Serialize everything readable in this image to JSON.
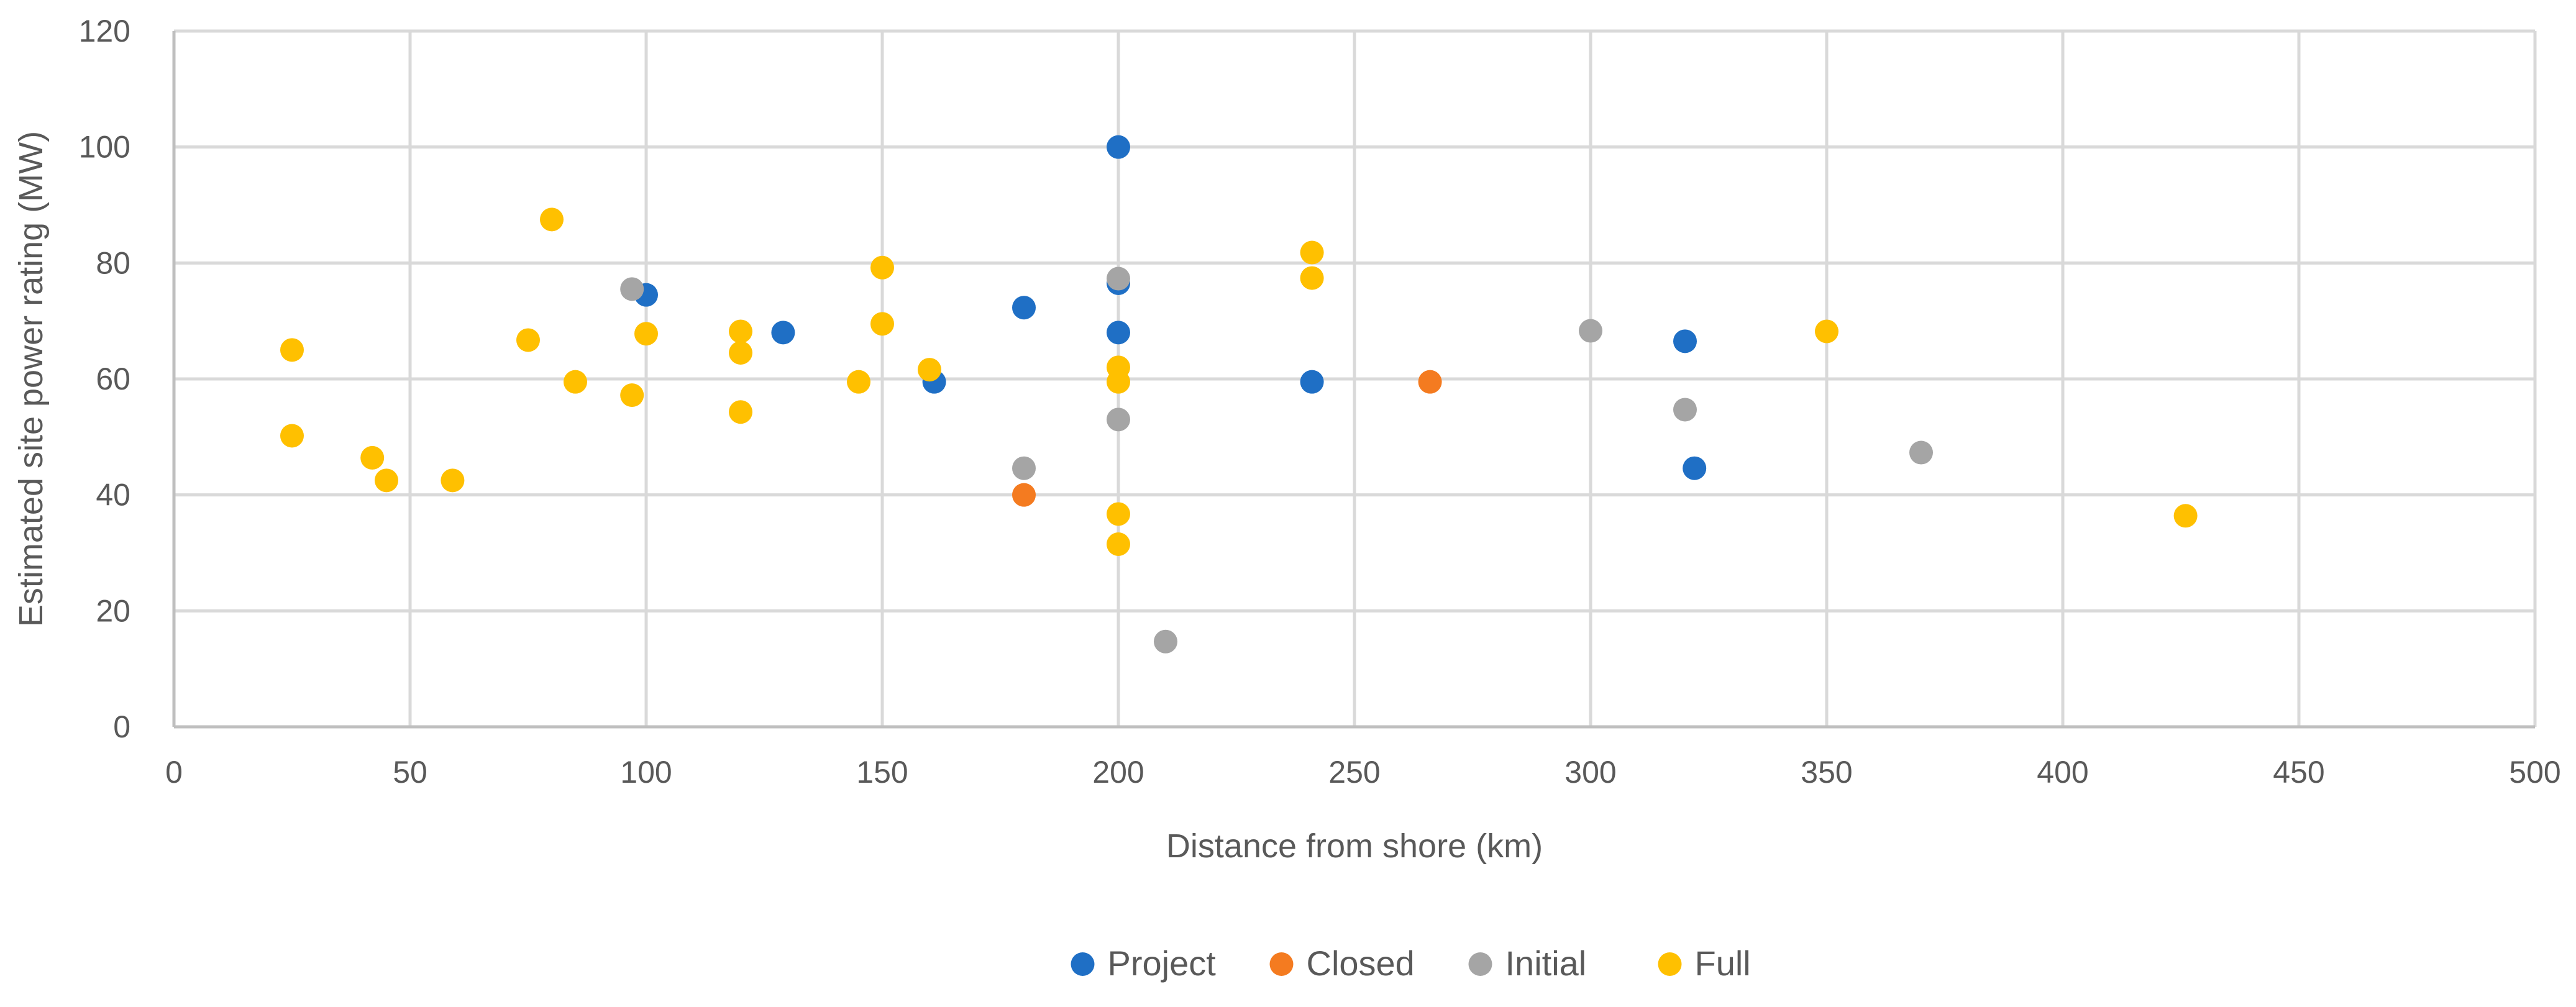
{
  "chart_data": {
    "type": "scatter",
    "title": "",
    "xlabel": "Distance from shore (km)",
    "ylabel": "Estimated site power rating (MW)",
    "xlim": [
      0,
      500
    ],
    "ylim": [
      0,
      120
    ],
    "xticks": [
      0,
      50,
      100,
      150,
      200,
      250,
      300,
      350,
      400,
      450,
      500
    ],
    "yticks": [
      0,
      20,
      40,
      60,
      80,
      100,
      120
    ],
    "grid": true,
    "legend_position": "bottom",
    "series": [
      {
        "name": "Project",
        "color": "#1f6fc5",
        "points": [
          [
            100,
            74.5
          ],
          [
            129,
            68
          ],
          [
            161,
            59.5
          ],
          [
            180,
            72.3
          ],
          [
            200,
            100
          ],
          [
            200,
            76.5
          ],
          [
            200,
            68
          ],
          [
            241,
            59.5
          ],
          [
            320,
            66.5
          ],
          [
            322,
            44.6
          ]
        ]
      },
      {
        "name": "Closed",
        "color": "#f47b20",
        "points": [
          [
            180,
            40
          ],
          [
            266,
            59.5
          ]
        ]
      },
      {
        "name": "Initial",
        "color": "#a5a5a5",
        "points": [
          [
            97,
            75.5
          ],
          [
            180,
            44.6
          ],
          [
            200,
            77.3
          ],
          [
            200,
            53
          ],
          [
            210,
            14.7
          ],
          [
            300,
            68.3
          ],
          [
            320,
            54.7
          ],
          [
            370,
            47.3
          ]
        ]
      },
      {
        "name": "Full",
        "color": "#ffc000",
        "points": [
          [
            25,
            65
          ],
          [
            25,
            50.2
          ],
          [
            42,
            46.4
          ],
          [
            45,
            42.5
          ],
          [
            59,
            42.5
          ],
          [
            75,
            66.7
          ],
          [
            80,
            87.5
          ],
          [
            85,
            59.5
          ],
          [
            97,
            57.2
          ],
          [
            100,
            67.8
          ],
          [
            120,
            68.2
          ],
          [
            120,
            64.5
          ],
          [
            120,
            54.3
          ],
          [
            145,
            59.5
          ],
          [
            150,
            79.2
          ],
          [
            150,
            69.5
          ],
          [
            160,
            61.6
          ],
          [
            200,
            62
          ],
          [
            200,
            59.5
          ],
          [
            200,
            36.7
          ],
          [
            200,
            31.5
          ],
          [
            241,
            81.8
          ],
          [
            241,
            77.4
          ],
          [
            350,
            68.2
          ],
          [
            426,
            36.4
          ]
        ]
      }
    ]
  }
}
